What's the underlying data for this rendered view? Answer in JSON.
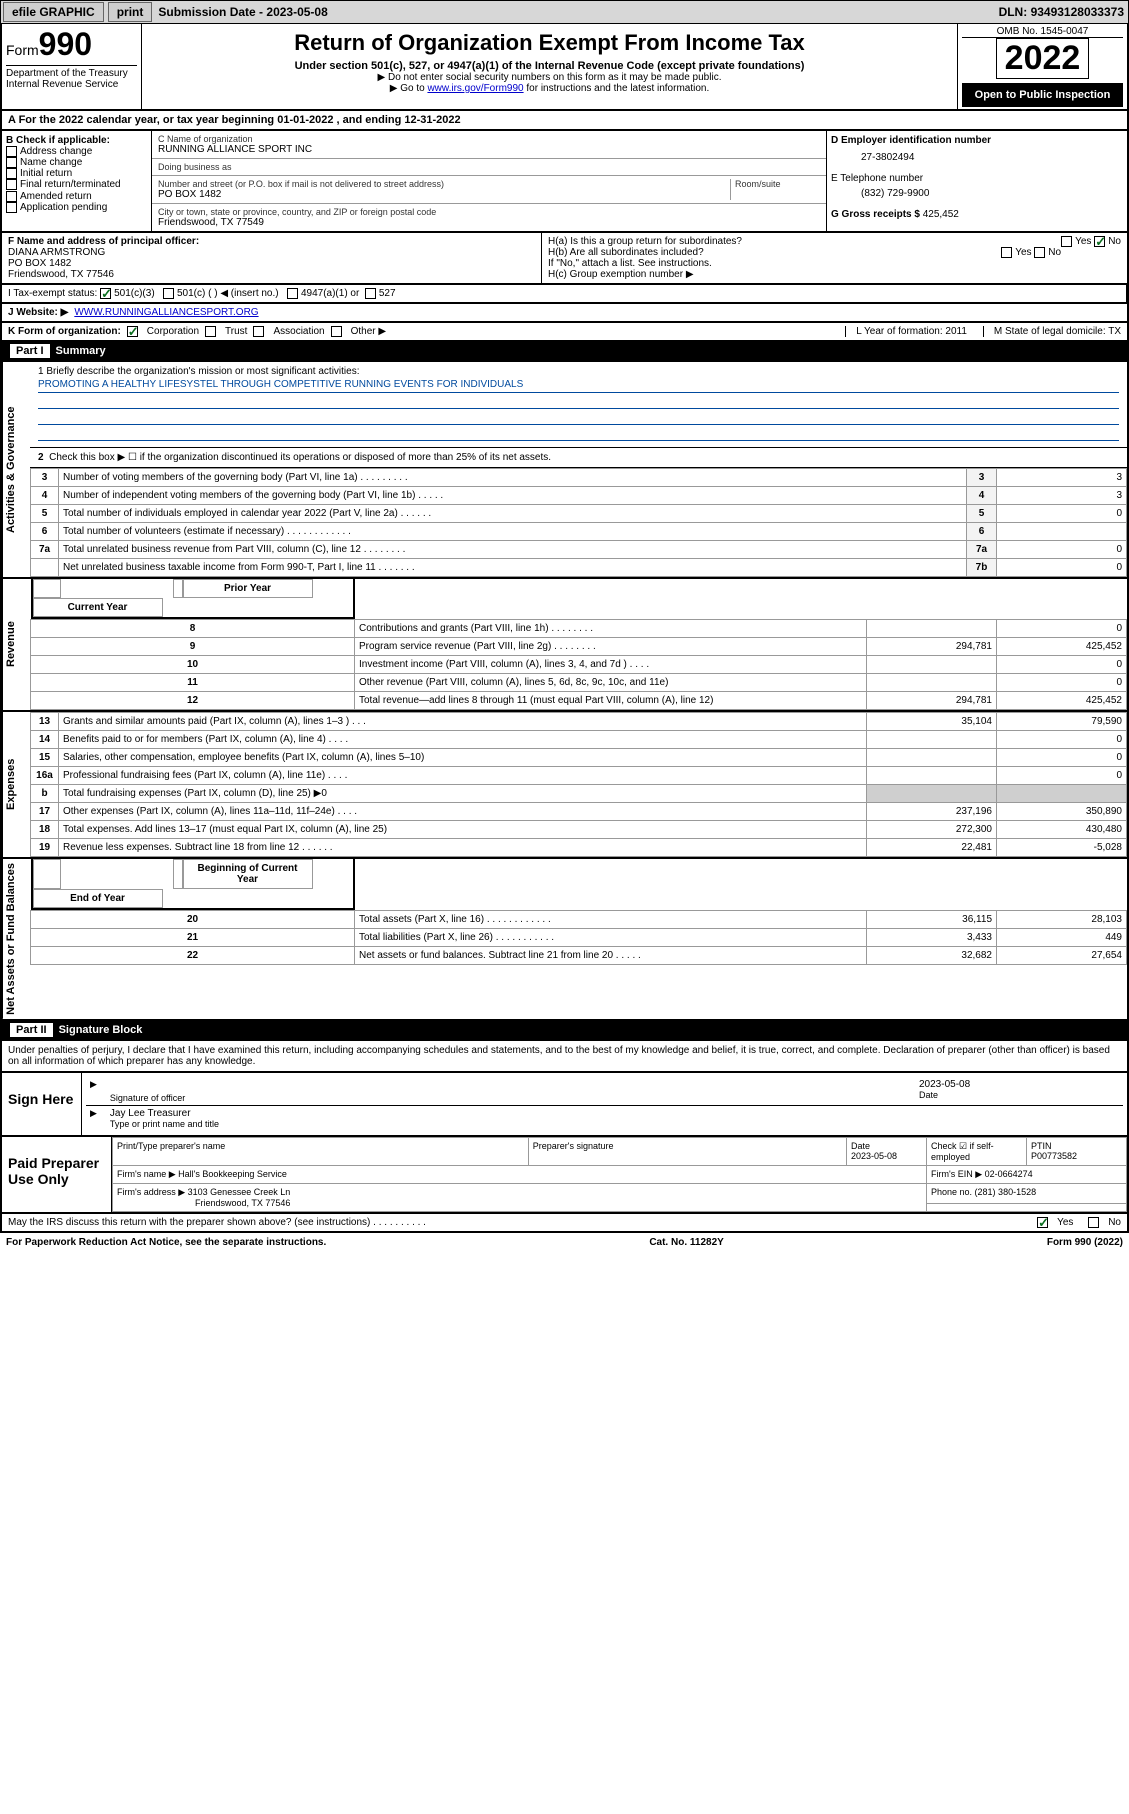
{
  "topbar": {
    "efile": "efile GRAPHIC",
    "print": "print",
    "sub_label": "Submission Date - ",
    "sub_date": "2023-05-08",
    "dln_label": "DLN: ",
    "dln": "93493128033373"
  },
  "header": {
    "form_word": "Form",
    "form_num": "990",
    "dept": "Department of the Treasury",
    "irs": "Internal Revenue Service",
    "title": "Return of Organization Exempt From Income Tax",
    "sub": "Under section 501(c), 527, or 4947(a)(1) of the Internal Revenue Code (except private foundations)",
    "note1": "▶ Do not enter social security numbers on this form as it may be made public.",
    "note2_pre": "▶ Go to ",
    "note2_link": "www.irs.gov/Form990",
    "note2_post": " for instructions and the latest information.",
    "omb": "OMB No. 1545-0047",
    "year": "2022",
    "open": "Open to Public Inspection"
  },
  "A": {
    "text_pre": "A For the 2022 calendar year, or tax year beginning ",
    "begin": "01-01-2022",
    "mid": "   , and ending ",
    "end": "12-31-2022"
  },
  "B": {
    "label": "B Check if applicable:",
    "items": [
      "Address change",
      "Name change",
      "Initial return",
      "Final return/terminated",
      "Amended return",
      "Application pending"
    ]
  },
  "C": {
    "name_label": "C Name of organization",
    "name": "RUNNING ALLIANCE SPORT INC",
    "dba_label": "Doing business as",
    "dba": "",
    "addr_label": "Number and street (or P.O. box if mail is not delivered to street address)",
    "room_label": "Room/suite",
    "addr": "PO BOX 1482",
    "city_label": "City or town, state or province, country, and ZIP or foreign postal code",
    "city": "Friendswood, TX  77549"
  },
  "D": {
    "label": "D Employer identification number",
    "val": "27-3802494",
    "E_label": "E Telephone number",
    "E_val": "(832) 729-9900",
    "G_label": "G Gross receipts $ ",
    "G_val": "425,452"
  },
  "F": {
    "label": "F  Name and address of principal officer:",
    "name": "DIANA ARMSTRONG",
    "addr1": "PO BOX 1482",
    "addr2": "Friendswood, TX  77546"
  },
  "H": {
    "a": "H(a)  Is this a group return for subordinates?",
    "a_no": "No",
    "a_yes": "Yes",
    "b": "H(b)  Are all subordinates included?",
    "b_yes": "Yes",
    "b_no": "No",
    "b_note": "If \"No,\" attach a list. See instructions.",
    "c": "H(c)  Group exemption number ▶"
  },
  "I": {
    "label": "I  Tax-exempt status:",
    "o1": "501(c)(3)",
    "o2": "501(c) (   ) ◀ (insert no.)",
    "o3": "4947(a)(1) or",
    "o4": "527"
  },
  "J": {
    "label": "J  Website: ▶ ",
    "val": "WWW.RUNNINGALLIANCESPORT.ORG"
  },
  "K": {
    "label": "K Form of organization:",
    "o1": "Corporation",
    "o2": "Trust",
    "o3": "Association",
    "o4": "Other ▶",
    "L": "L Year of formation: 2011",
    "M": "M State of legal domicile: TX"
  },
  "partI": {
    "bar": "Part I",
    "title": "Summary"
  },
  "mission": {
    "q": "1  Briefly describe the organization's mission or most significant activities:",
    "text": "PROMOTING A HEALTHY LIFESYSTEL THROUGH COMPETITIVE RUNNING EVENTS FOR INDIVIDUALS"
  },
  "gov": {
    "r2": "Check this box ▶ ☐  if the organization discontinued its operations or disposed of more than 25% of its net assets.",
    "rows": [
      {
        "n": "3",
        "t": "Number of voting members of the governing body (Part VI, line 1a)   .    .    .    .    .    .    .    .    .",
        "b": "3",
        "v": "3"
      },
      {
        "n": "4",
        "t": "Number of independent voting members of the governing body (Part VI, line 1b)   .    .    .    .    .",
        "b": "4",
        "v": "3"
      },
      {
        "n": "5",
        "t": "Total number of individuals employed in calendar year 2022 (Part V, line 2a)   .    .    .    .    .    .",
        "b": "5",
        "v": "0"
      },
      {
        "n": "6",
        "t": "Total number of volunteers (estimate if necessary)   .    .    .    .    .    .    .    .    .    .    .    .",
        "b": "6",
        "v": ""
      },
      {
        "n": "7a",
        "t": "Total unrelated business revenue from Part VIII, column (C), line 12   .    .    .    .    .    .    .    .",
        "b": "7a",
        "v": "0"
      },
      {
        "n": "",
        "t": "Net unrelated business taxable income from Form 990-T, Part I, line 11   .    .    .    .    .    .    .",
        "b": "7b",
        "v": "0"
      }
    ]
  },
  "cols": {
    "prior": "Prior Year",
    "curr": "Current Year",
    "beg": "Beginning of Current Year",
    "end": "End of Year"
  },
  "rev": [
    {
      "n": "8",
      "t": "Contributions and grants (Part VIII, line 1h)   .    .    .    .    .    .    .    .",
      "p": "",
      "c": "0"
    },
    {
      "n": "9",
      "t": "Program service revenue (Part VIII, line 2g)   .    .    .    .    .    .    .    .",
      "p": "294,781",
      "c": "425,452"
    },
    {
      "n": "10",
      "t": "Investment income (Part VIII, column (A), lines 3, 4, and 7d )   .    .    .    .",
      "p": "",
      "c": "0"
    },
    {
      "n": "11",
      "t": "Other revenue (Part VIII, column (A), lines 5, 6d, 8c, 9c, 10c, and 11e)",
      "p": "",
      "c": "0"
    },
    {
      "n": "12",
      "t": "Total revenue—add lines 8 through 11 (must equal Part VIII, column (A), line 12)",
      "p": "294,781",
      "c": "425,452"
    }
  ],
  "exp": [
    {
      "n": "13",
      "t": "Grants and similar amounts paid (Part IX, column (A), lines 1–3 )   .    .    .",
      "p": "35,104",
      "c": "79,590"
    },
    {
      "n": "14",
      "t": "Benefits paid to or for members (Part IX, column (A), line 4)   .    .    .    .",
      "p": "",
      "c": "0"
    },
    {
      "n": "15",
      "t": "Salaries, other compensation, employee benefits (Part IX, column (A), lines 5–10)",
      "p": "",
      "c": "0"
    },
    {
      "n": "16a",
      "t": "Professional fundraising fees (Part IX, column (A), line 11e)   .    .    .    .",
      "p": "",
      "c": "0"
    },
    {
      "n": "b",
      "t": "Total fundraising expenses (Part IX, column (D), line 25) ▶0",
      "p": "SHADE",
      "c": "SHADE"
    },
    {
      "n": "17",
      "t": "Other expenses (Part IX, column (A), lines 11a–11d, 11f–24e)   .    .    .    .",
      "p": "237,196",
      "c": "350,890"
    },
    {
      "n": "18",
      "t": "Total expenses. Add lines 13–17 (must equal Part IX, column (A), line 25)",
      "p": "272,300",
      "c": "430,480"
    },
    {
      "n": "19",
      "t": "Revenue less expenses. Subtract line 18 from line 12   .    .    .    .    .    .",
      "p": "22,481",
      "c": "-5,028"
    }
  ],
  "net": [
    {
      "n": "20",
      "t": "Total assets (Part X, line 16)   .    .    .    .    .    .    .    .    .    .    .    .",
      "p": "36,115",
      "c": "28,103"
    },
    {
      "n": "21",
      "t": "Total liabilities (Part X, line 26)   .    .    .    .    .    .    .    .    .    .    .",
      "p": "3,433",
      "c": "449"
    },
    {
      "n": "22",
      "t": "Net assets or fund balances. Subtract line 21 from line 20   .    .    .    .    .",
      "p": "32,682",
      "c": "27,654"
    }
  ],
  "vlabels": {
    "gov": "Activities & Governance",
    "rev": "Revenue",
    "exp": "Expenses",
    "net": "Net Assets or Fund Balances"
  },
  "partII": {
    "bar": "Part II",
    "title": "Signature Block"
  },
  "penalty": "Under penalties of perjury, I declare that I have examined this return, including accompanying schedules and statements, and to the best of my knowledge and belief, it is true, correct, and complete. Declaration of preparer (other than officer) is based on all information of which preparer has any knowledge.",
  "sign": {
    "lab": "Sign Here",
    "sig_of": "Signature of officer",
    "date": "2023-05-08",
    "date_lab": "Date",
    "name": "Jay Lee Treasurer",
    "name_lab": "Type or print name and title"
  },
  "prep": {
    "lab": "Paid Preparer Use Only",
    "c1": "Print/Type preparer's name",
    "c2": "Preparer's signature",
    "c3": "Date",
    "c3v": "2023-05-08",
    "c4": "Check ☑ if self-employed",
    "c5": "PTIN",
    "c5v": "P00773582",
    "firm_lab": "Firm's name    ▶ ",
    "firm": "Hall's Bookkeeping Service",
    "ein_lab": "Firm's EIN ▶ ",
    "ein": "02-0664274",
    "addr_lab": "Firm's address ▶ ",
    "addr1": "3103 Genessee Creek Ln",
    "addr2": "Friendswood, TX  77546",
    "ph_lab": "Phone no. ",
    "ph": "(281) 380-1528"
  },
  "may": {
    "q": "May the IRS discuss this return with the preparer shown above? (see instructions)   .    .    .    .    .    .    .    .    .    .",
    "yes": "Yes",
    "no": "No"
  },
  "footer": {
    "l": "For Paperwork Reduction Act Notice, see the separate instructions.",
    "m": "Cat. No. 11282Y",
    "r": "Form 990 (2022)"
  }
}
